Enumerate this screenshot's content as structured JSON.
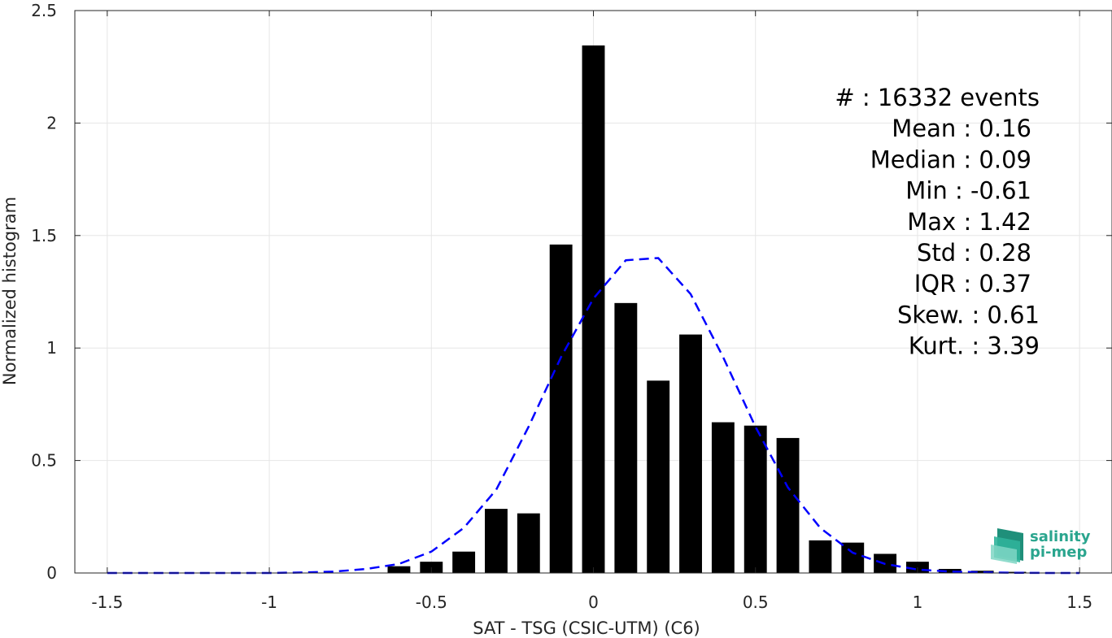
{
  "chart_data": {
    "type": "bar",
    "xlabel": "SAT - TSG (CSIC-UTM) (C6)",
    "ylabel": "Normalized histogram",
    "xlim": [
      -1.6,
      1.6
    ],
    "ylim": [
      0,
      2.5
    ],
    "grid": true,
    "x_ticks": [
      -1.5,
      -1,
      -0.5,
      0,
      0.5,
      1,
      1.5
    ],
    "x_tick_labels": [
      "-1.5",
      "-1",
      "-0.5",
      "0",
      "0.5",
      "1",
      "1.5"
    ],
    "y_ticks": [
      0,
      0.5,
      1,
      1.5,
      2,
      2.5
    ],
    "y_tick_labels": [
      "0",
      "0.5",
      "1",
      "1.5",
      "2",
      "2.5"
    ],
    "bar_width": 0.07,
    "bar_color": "#000000",
    "bars": [
      {
        "x": -0.6,
        "y": 0.03
      },
      {
        "x": -0.5,
        "y": 0.05
      },
      {
        "x": -0.4,
        "y": 0.095
      },
      {
        "x": -0.3,
        "y": 0.285
      },
      {
        "x": -0.2,
        "y": 0.265
      },
      {
        "x": -0.1,
        "y": 1.46
      },
      {
        "x": 0.0,
        "y": 2.345
      },
      {
        "x": 0.1,
        "y": 1.2
      },
      {
        "x": 0.2,
        "y": 0.855
      },
      {
        "x": 0.3,
        "y": 1.06
      },
      {
        "x": 0.4,
        "y": 0.67
      },
      {
        "x": 0.5,
        "y": 0.655
      },
      {
        "x": 0.6,
        "y": 0.6
      },
      {
        "x": 0.7,
        "y": 0.145
      },
      {
        "x": 0.8,
        "y": 0.135
      },
      {
        "x": 0.9,
        "y": 0.085
      },
      {
        "x": 1.0,
        "y": 0.05
      },
      {
        "x": 1.1,
        "y": 0.018
      },
      {
        "x": 1.2,
        "y": 0.01
      },
      {
        "x": 1.3,
        "y": 0.005
      }
    ],
    "fit_curve": {
      "color": "#0000ff",
      "dashed": true,
      "x": [
        -1.5,
        -1.4,
        -1.3,
        -1.2,
        -1.1,
        -1.0,
        -0.9,
        -0.8,
        -0.7,
        -0.6,
        -0.5,
        -0.4,
        -0.3,
        -0.2,
        -0.1,
        0.0,
        0.1,
        0.2,
        0.3,
        0.4,
        0.5,
        0.6,
        0.7,
        0.8,
        0.9,
        1.0,
        1.1,
        1.2,
        1.3,
        1.4,
        1.5
      ],
      "y": [
        0.0,
        0.0,
        0.0,
        0.0,
        0.0,
        0.0,
        0.002,
        0.006,
        0.018,
        0.04,
        0.095,
        0.2,
        0.37,
        0.65,
        0.96,
        1.22,
        1.39,
        1.4,
        1.24,
        0.96,
        0.65,
        0.38,
        0.2,
        0.09,
        0.04,
        0.015,
        0.006,
        0.003,
        0.001,
        0.0,
        0.0
      ]
    },
    "stats": [
      "#  : 16332 events",
      "Mean : 0.16",
      "Median : 0.09",
      "Min : -0.61",
      "Max : 1.42",
      "Std : 0.28",
      "IQR : 0.37",
      "Skew. : 0.61",
      "Kurt. : 3.39"
    ]
  },
  "logo": {
    "line1": "salinity",
    "line2": "pi-mep"
  }
}
